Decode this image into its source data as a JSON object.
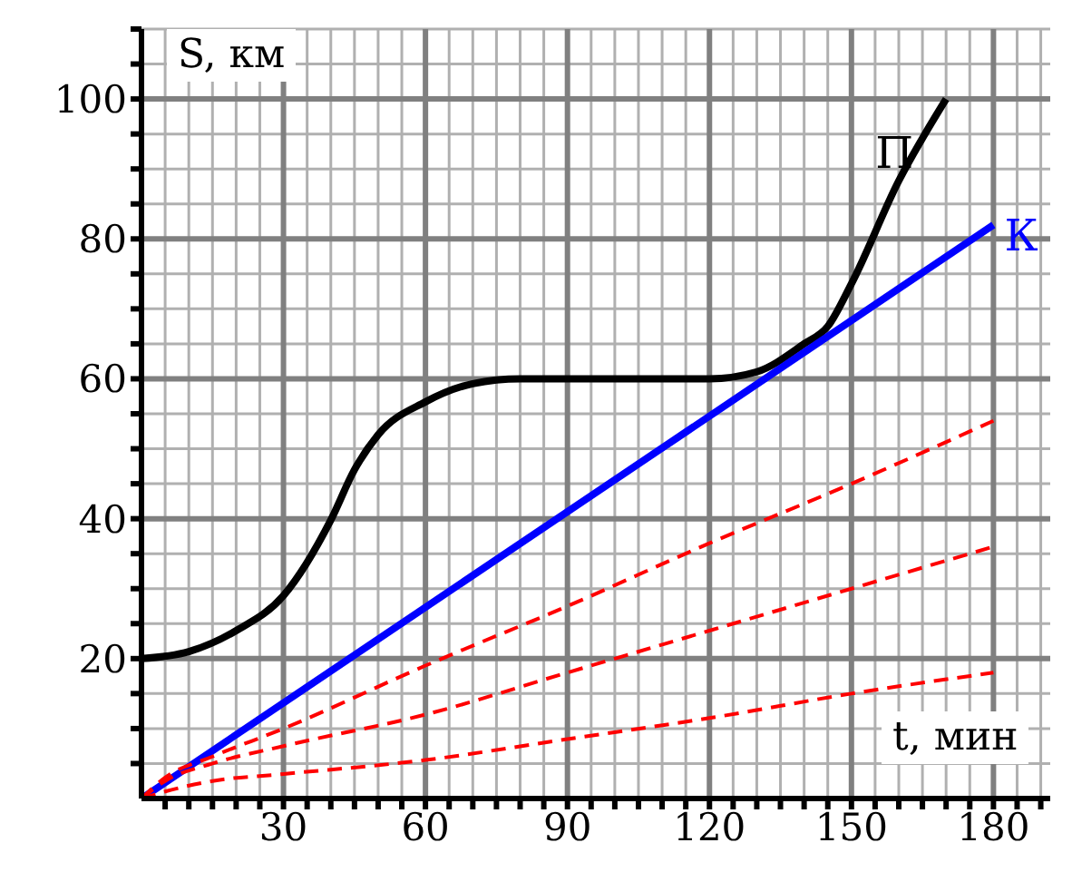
{
  "chart_data": {
    "type": "line",
    "xlabel": "t, мин",
    "ylabel": "S, км",
    "xlim": [
      0,
      192
    ],
    "ylim": [
      0,
      110
    ],
    "xticks": [
      {
        "value": 5,
        "label": null
      },
      {
        "value": 10,
        "label": null
      },
      {
        "value": 15,
        "label": null
      },
      {
        "value": 20,
        "label": null
      },
      {
        "value": 25,
        "label": null
      },
      30,
      {
        "value": 35,
        "label": null
      },
      {
        "value": 40,
        "label": null
      },
      {
        "value": 45,
        "label": null
      },
      {
        "value": 50,
        "label": null
      },
      {
        "value": 55,
        "label": null
      },
      60,
      {
        "value": 65,
        "label": null
      },
      {
        "value": 70,
        "label": null
      },
      {
        "value": 75,
        "label": null
      },
      {
        "value": 80,
        "label": null
      },
      {
        "value": 85,
        "label": null
      },
      90,
      {
        "value": 95,
        "label": null
      },
      {
        "value": 100,
        "label": null
      },
      {
        "value": 105,
        "label": null
      },
      {
        "value": 110,
        "label": null
      },
      {
        "value": 115,
        "label": null
      },
      120,
      {
        "value": 125,
        "label": null
      },
      {
        "value": 130,
        "label": null
      },
      {
        "value": 135,
        "label": null
      },
      {
        "value": 140,
        "label": null
      },
      {
        "value": 145,
        "label": null
      },
      150,
      {
        "value": 155,
        "label": null
      },
      {
        "value": 160,
        "label": null
      },
      {
        "value": 165,
        "label": null
      },
      {
        "value": 170,
        "label": null
      },
      {
        "value": 175,
        "label": null
      },
      180,
      {
        "value": 185,
        "label": null
      },
      {
        "value": 190,
        "label": null
      }
    ],
    "yticks": [
      {
        "value": 5,
        "label": null
      },
      {
        "value": 10,
        "label": null
      },
      {
        "value": 15,
        "label": null
      },
      20,
      {
        "value": 25,
        "label": null
      },
      {
        "value": 30,
        "label": null
      },
      {
        "value": 35,
        "label": null
      },
      40,
      {
        "value": 45,
        "label": null
      },
      {
        "value": 50,
        "label": null
      },
      {
        "value": 55,
        "label": null
      },
      60,
      {
        "value": 65,
        "label": null
      },
      {
        "value": 70,
        "label": null
      },
      {
        "value": 75,
        "label": null
      },
      80,
      {
        "value": 85,
        "label": null
      },
      {
        "value": 90,
        "label": null
      },
      {
        "value": 95,
        "label": null
      },
      100,
      {
        "value": 105,
        "label": null
      },
      {
        "value": 110,
        "label": null
      }
    ],
    "grid": true,
    "marker": "none",
    "series": [
      {
        "name": "П",
        "color": "#000000",
        "line_style": "solid",
        "x": [
          0,
          10,
          20,
          30,
          40,
          45,
          50,
          60,
          70,
          80,
          100,
          120,
          130,
          140,
          145,
          150,
          160,
          170
        ],
        "values": [
          20,
          21,
          24,
          29,
          39.8,
          47,
          52,
          56.7,
          59.3,
          60,
          60,
          60,
          61,
          65,
          67.5,
          73.6,
          88.3,
          100
        ]
      },
      {
        "name": "К",
        "color": "#0000ff",
        "line_style": "solid",
        "x": [
          0,
          180
        ],
        "values": [
          0,
          82
        ]
      },
      {
        "color": "#ff0000",
        "line_style": "dashed",
        "x": [
          0,
          5,
          15,
          30,
          60,
          90,
          120,
          150,
          180
        ],
        "values": [
          0,
          3,
          6,
          10,
          19,
          27.5,
          36.5,
          45,
          54
        ]
      },
      {
        "color": "#ff0000",
        "line_style": "dashed",
        "x": [
          0,
          5,
          15,
          30,
          60,
          90,
          120,
          150,
          180
        ],
        "values": [
          0,
          2.5,
          5,
          7.5,
          12,
          18,
          24,
          30,
          36
        ]
      },
      {
        "color": "#ff0000",
        "line_style": "dashed",
        "x": [
          0,
          5,
          15,
          30,
          60,
          90,
          120,
          150,
          180
        ],
        "values": [
          0,
          1,
          2.5,
          3.5,
          5.5,
          8.5,
          11.5,
          15,
          18
        ]
      }
    ]
  }
}
